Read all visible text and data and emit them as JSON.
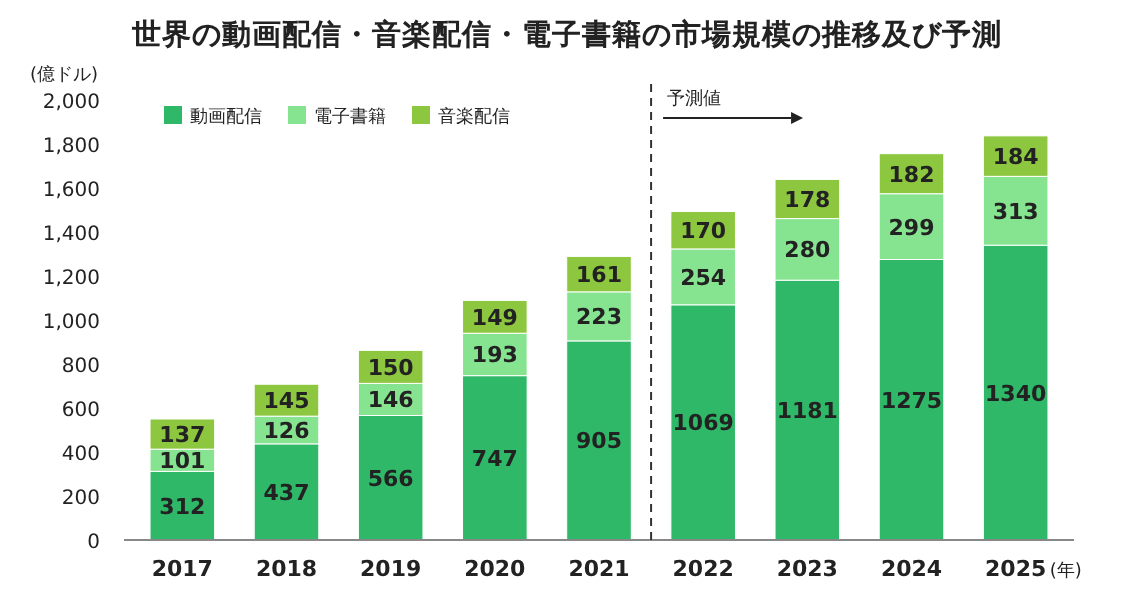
{
  "chart_data": {
    "type": "bar",
    "title": "世界の動画配信・音楽配信・電子書籍の市場規模の推移及び予測",
    "ylabel": "(億ドル)",
    "xlabel": "(年)",
    "categories": [
      "2017",
      "2018",
      "2019",
      "2020",
      "2021",
      "2022",
      "2023",
      "2024",
      "2025"
    ],
    "stacked": true,
    "data_labels": true,
    "legend": "top left",
    "grid": false,
    "ylim": [
      0,
      2000
    ],
    "yticks": [
      0,
      200,
      400,
      600,
      800,
      {
        "value": 1000,
        "label": "1,000"
      },
      {
        "value": 1200,
        "label": "1,200"
      },
      {
        "value": 1400,
        "label": "1,400"
      },
      {
        "value": 1600,
        "label": "1,600"
      },
      {
        "value": 1800,
        "label": "1,800"
      },
      {
        "value": 2000,
        "label": "2,000"
      }
    ],
    "series": [
      {
        "name": "動画配信",
        "color": "#2fb868",
        "values": [
          312,
          437,
          566,
          747,
          905,
          1069,
          1181,
          1275,
          1340
        ]
      },
      {
        "name": "電子書籍",
        "color": "#86e38f",
        "values": [
          101,
          126,
          146,
          193,
          223,
          254,
          280,
          299,
          313
        ]
      },
      {
        "name": "音楽配信",
        "color": "#8dc63f",
        "values": [
          137,
          145,
          150,
          149,
          161,
          170,
          178,
          182,
          184
        ]
      }
    ],
    "annotations": [
      "予測値"
    ]
  }
}
